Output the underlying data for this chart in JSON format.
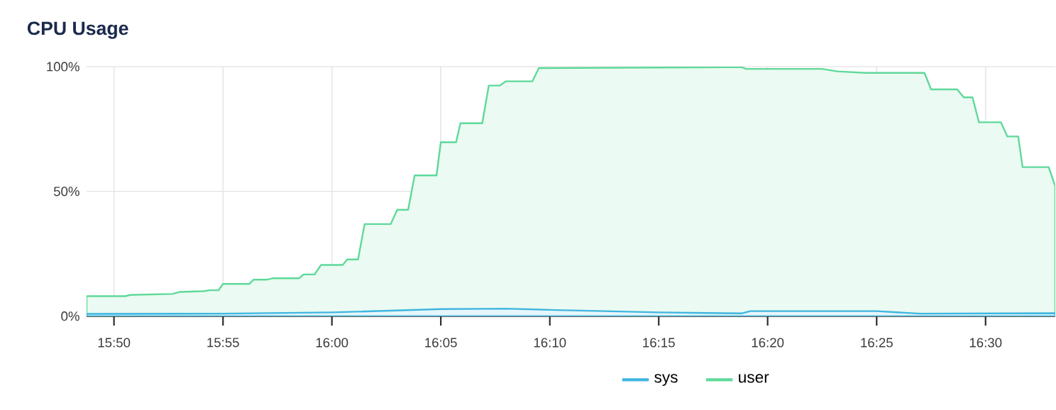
{
  "chart_data": {
    "type": "area",
    "title": "CPU Usage",
    "xlim": [
      15.8123,
      16.5533
    ],
    "xticks": [
      {
        "value": 15.8333,
        "label": "15:50"
      },
      {
        "value": 15.9167,
        "label": "15:55"
      },
      {
        "value": 16.0,
        "label": "16:00"
      },
      {
        "value": 16.0833,
        "label": "16:05"
      },
      {
        "value": 16.1667,
        "label": "16:10"
      },
      {
        "value": 16.25,
        "label": "16:15"
      },
      {
        "value": 16.3333,
        "label": "16:20"
      },
      {
        "value": 16.4167,
        "label": "16:25"
      },
      {
        "value": 16.5,
        "label": "16:30"
      }
    ],
    "ylim": [
      0,
      100
    ],
    "yticks": [
      {
        "value": 0,
        "label": "0%"
      },
      {
        "value": 50,
        "label": "50%"
      },
      {
        "value": 100,
        "label": "100%"
      }
    ],
    "grid": true,
    "legend": "bottom",
    "marker": "none",
    "line_style": "solid",
    "series": [
      {
        "name": "sys",
        "color": "#3fb6e0",
        "x": [
          15.8123,
          15.9167,
          16.0,
          16.0833,
          16.1333,
          16.1667,
          16.25,
          16.3133,
          16.32,
          16.4167,
          16.45,
          16.5533
        ],
        "values": [
          0.9,
          1.0,
          1.5,
          2.8,
          3.0,
          2.5,
          1.5,
          1.1,
          2.0,
          2.0,
          1.0,
          1.2
        ]
      },
      {
        "name": "user",
        "color": "#5ed99a",
        "x": [
          15.8123,
          15.842,
          15.8457,
          15.878,
          15.8833,
          15.9017,
          15.9067,
          15.9133,
          15.9167,
          15.9367,
          15.94,
          15.95,
          15.955,
          15.975,
          15.9783,
          15.9867,
          15.9917,
          16.0083,
          16.0117,
          16.02,
          16.025,
          16.045,
          16.05,
          16.0583,
          16.0633,
          16.08,
          16.0833,
          16.095,
          16.0983,
          16.115,
          16.12,
          16.1283,
          16.133,
          16.1533,
          16.1583,
          16.3133,
          16.3167,
          16.375,
          16.3867,
          16.4083,
          16.4533,
          16.4583,
          16.4783,
          16.4833,
          16.49,
          16.495,
          16.5117,
          16.5167,
          16.525,
          16.5283,
          16.5483,
          16.5533
        ],
        "values": [
          8.0,
          8.0,
          8.5,
          8.9,
          9.7,
          10.0,
          10.4,
          10.4,
          12.9,
          12.9,
          14.6,
          14.6,
          15.2,
          15.2,
          16.7,
          16.7,
          20.5,
          20.5,
          22.7,
          22.7,
          36.9,
          36.9,
          42.6,
          42.6,
          56.4,
          56.4,
          69.7,
          69.7,
          77.3,
          77.3,
          92.4,
          92.4,
          94.1,
          94.1,
          99.4,
          99.8,
          99.1,
          99.1,
          98.1,
          97.5,
          97.5,
          90.9,
          90.9,
          87.7,
          87.7,
          77.7,
          77.7,
          72.0,
          72.0,
          59.7,
          59.7,
          52.1
        ]
      }
    ]
  }
}
